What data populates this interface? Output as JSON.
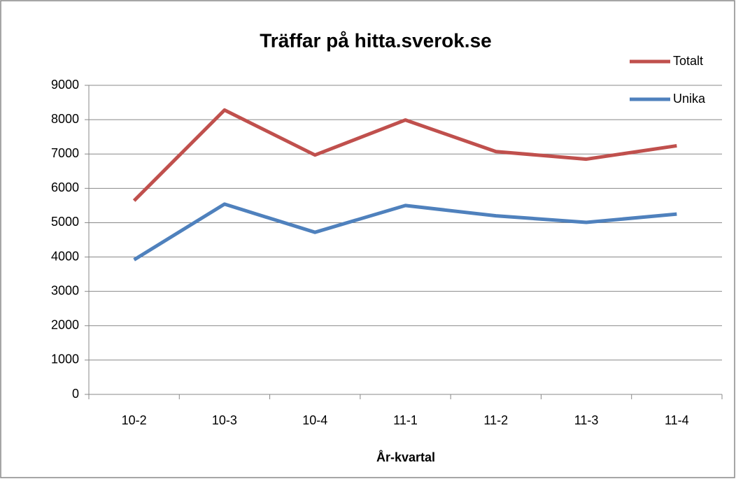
{
  "chart_data": {
    "type": "line",
    "title": "Träffar på hitta.sverok.se",
    "x_label": "År-kvartal",
    "categories": [
      "10-2",
      "10-3",
      "10-4",
      "11-1",
      "11-2",
      "11-3",
      "11-4"
    ],
    "series": [
      {
        "name": "Totalt",
        "color": "#c0504d",
        "values": [
          5640,
          8280,
          6970,
          7990,
          7070,
          6850,
          7240
        ]
      },
      {
        "name": "Unika",
        "color": "#4f81bd",
        "values": [
          3920,
          5540,
          4720,
          5500,
          5200,
          5010,
          5250
        ]
      }
    ],
    "ylim": [
      0,
      9000
    ],
    "yticks": [
      0,
      1000,
      2000,
      3000,
      4000,
      5000,
      6000,
      7000,
      8000,
      9000
    ],
    "grid": true,
    "legend": "top-right"
  }
}
